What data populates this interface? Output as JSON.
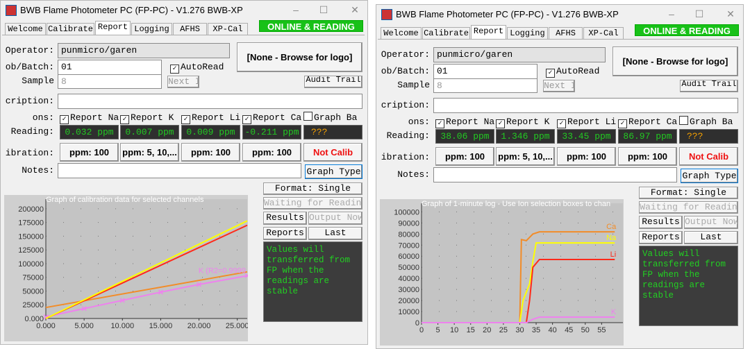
{
  "windows": [
    {
      "title": "BWB Flame Photometer PC (FP-PC) -  V1.276 BWB-XP",
      "tabs": [
        "Welcome",
        "Calibrate",
        "Report",
        "Logging",
        "AFHS",
        "XP-Cal"
      ],
      "status": "ONLINE & READING",
      "operator_label": "Operator:",
      "operator": "punmicro/garen",
      "logo": "[None - Browse for logo]",
      "job_label": "ob/Batch:",
      "job": "01",
      "autoread": {
        "label": "AutoRead",
        "checked": true
      },
      "sample_label": "Sample",
      "sample": "8",
      "next_id": "Next II",
      "audit": "Audit Trail",
      "description_label": "cription:",
      "options_label": "ons:",
      "options": [
        {
          "label": "Report Na",
          "checked": true
        },
        {
          "label": "Report K",
          "checked": true
        },
        {
          "label": "Report Li",
          "checked": true
        },
        {
          "label": "Report Ca",
          "checked": true
        },
        {
          "label": "Graph Ba",
          "checked": false
        }
      ],
      "reading_label": "Reading:",
      "readings": [
        "0.032 ppm",
        "0.007 ppm",
        "0.009 ppm",
        "-0.211 ppm",
        "???"
      ],
      "calibration_label": "ibration:",
      "calibrations": [
        "ppm: 100",
        "ppm: 5, 10,...",
        "ppm: 100",
        "ppm: 100",
        "Not Calib"
      ],
      "notes_label": "Notes:",
      "buttons": {
        "graph_type": "Graph Type",
        "format": "Format: Single",
        "waiting": "Waiting for Reading",
        "results": "Results",
        "output": "Output Now",
        "reports": "Reports",
        "last": "Last"
      },
      "message": "Values will transferred from FP when the readings are stable",
      "graph": {
        "type": "line",
        "title": "Graph of calibration data for selected channels",
        "xlim": [
          0,
          26.3
        ],
        "ylim": [
          0,
          210000
        ],
        "xticks": [
          {
            "value": 0,
            "label": "0.000"
          },
          {
            "value": 5,
            "label": "5.000"
          },
          {
            "value": 10,
            "label": "10.000"
          },
          {
            "value": 15,
            "label": "15.000"
          },
          {
            "value": 20,
            "label": "20.000"
          },
          {
            "value": 25,
            "label": "25.000"
          }
        ],
        "yticks": [
          {
            "value": 0,
            "label": "0.000"
          },
          25000,
          50000,
          75000,
          100000,
          125000,
          150000,
          175000,
          200000
        ],
        "series": [
          {
            "color": "#f28c28",
            "x": [
              0,
              26.3
            ],
            "values": [
              20000,
              85000
            ]
          },
          {
            "name": "K (R2=0.9999",
            "color": "#ee82ee",
            "markers": true,
            "x": [
              0,
              5,
              10,
              15,
              20,
              26.3
            ],
            "values": [
              3000,
              18000,
              33000,
              48000,
              62000,
              78000
            ]
          },
          {
            "color": "#ff2a1a",
            "x": [
              0,
              26.3
            ],
            "values": [
              0,
              170000
            ]
          },
          {
            "color": "#ffff00",
            "x": [
              0,
              26.3
            ],
            "values": [
              0,
              178000
            ]
          }
        ]
      }
    },
    {
      "title": "BWB Flame Photometer PC (FP-PC) -  V1.276 BWB-XP",
      "tabs": [
        "Welcome",
        "Calibrate",
        "Report",
        "Logging",
        "AFHS",
        "XP-Cal"
      ],
      "status": "ONLINE & READING",
      "operator_label": "Operator:",
      "operator": "punmicro/garen",
      "logo": "[None - Browse for logo]",
      "job_label": "ob/Batch:",
      "job": "01",
      "autoread": {
        "label": "AutoRead",
        "checked": true
      },
      "sample_label": "Sample",
      "sample": "8",
      "next_id": "Next II",
      "audit": "Audit Trail",
      "description_label": "cription:",
      "options_label": "ons:",
      "options": [
        {
          "label": "Report Na",
          "checked": true
        },
        {
          "label": "Report K",
          "checked": true
        },
        {
          "label": "Report Li",
          "checked": true
        },
        {
          "label": "Report Ca",
          "checked": true
        },
        {
          "label": "Graph Ba",
          "checked": false
        }
      ],
      "reading_label": "Reading:",
      "readings": [
        "38.06 ppm",
        "1.346 ppm",
        "33.45 ppm",
        "86.97 ppm",
        "???"
      ],
      "calibration_label": "ibration:",
      "calibrations": [
        "ppm: 100",
        "ppm: 5, 10,...",
        "ppm: 100",
        "ppm: 100",
        "Not Calib"
      ],
      "notes_label": "Notes:",
      "buttons": {
        "graph_type": "Graph Type",
        "format": "Format: Single",
        "waiting": "Waiting for Readin",
        "results": "Results",
        "output": "Output Now",
        "reports": "Reports",
        "last": "Last"
      },
      "message": "Values will transferred from FP when the readings are stable",
      "graph": {
        "type": "line",
        "title": "Graph of 1-minute log - Use Ion selection boxes to chan",
        "xlim": [
          0,
          61.5
        ],
        "ylim": [
          0,
          104000
        ],
        "xticks": [
          0,
          5,
          10,
          15,
          20,
          25,
          30,
          35,
          40,
          45,
          50,
          55
        ],
        "yticks": [
          0,
          10000,
          20000,
          30000,
          40000,
          50000,
          60000,
          70000,
          80000,
          90000,
          100000
        ],
        "series": [
          {
            "name": "Ca",
            "color": "#f28c28",
            "x": [
              0,
              30,
              30.5,
              32,
              34,
              36,
              40,
              59
            ],
            "values": [
              0,
              0,
              75000,
              74000,
              80000,
              82000,
              82000,
              82000
            ]
          },
          {
            "name": "Na",
            "color": "#ffff00",
            "x": [
              0,
              30,
              31,
              33,
              34,
              35,
              59
            ],
            "values": [
              0,
              0,
              20000,
              35000,
              55000,
              72000,
              72000
            ]
          },
          {
            "name": "Li",
            "color": "#ff2a1a",
            "x": [
              0,
              32,
              33,
              34,
              36,
              59
            ],
            "values": [
              0,
              0,
              20000,
              50000,
              57000,
              57000
            ]
          },
          {
            "name": "K",
            "color": "#ee82ee",
            "x": [
              0,
              32,
              34,
              36,
              59
            ],
            "values": [
              0,
              0,
              3000,
              5000,
              5000
            ]
          }
        ]
      }
    }
  ]
}
